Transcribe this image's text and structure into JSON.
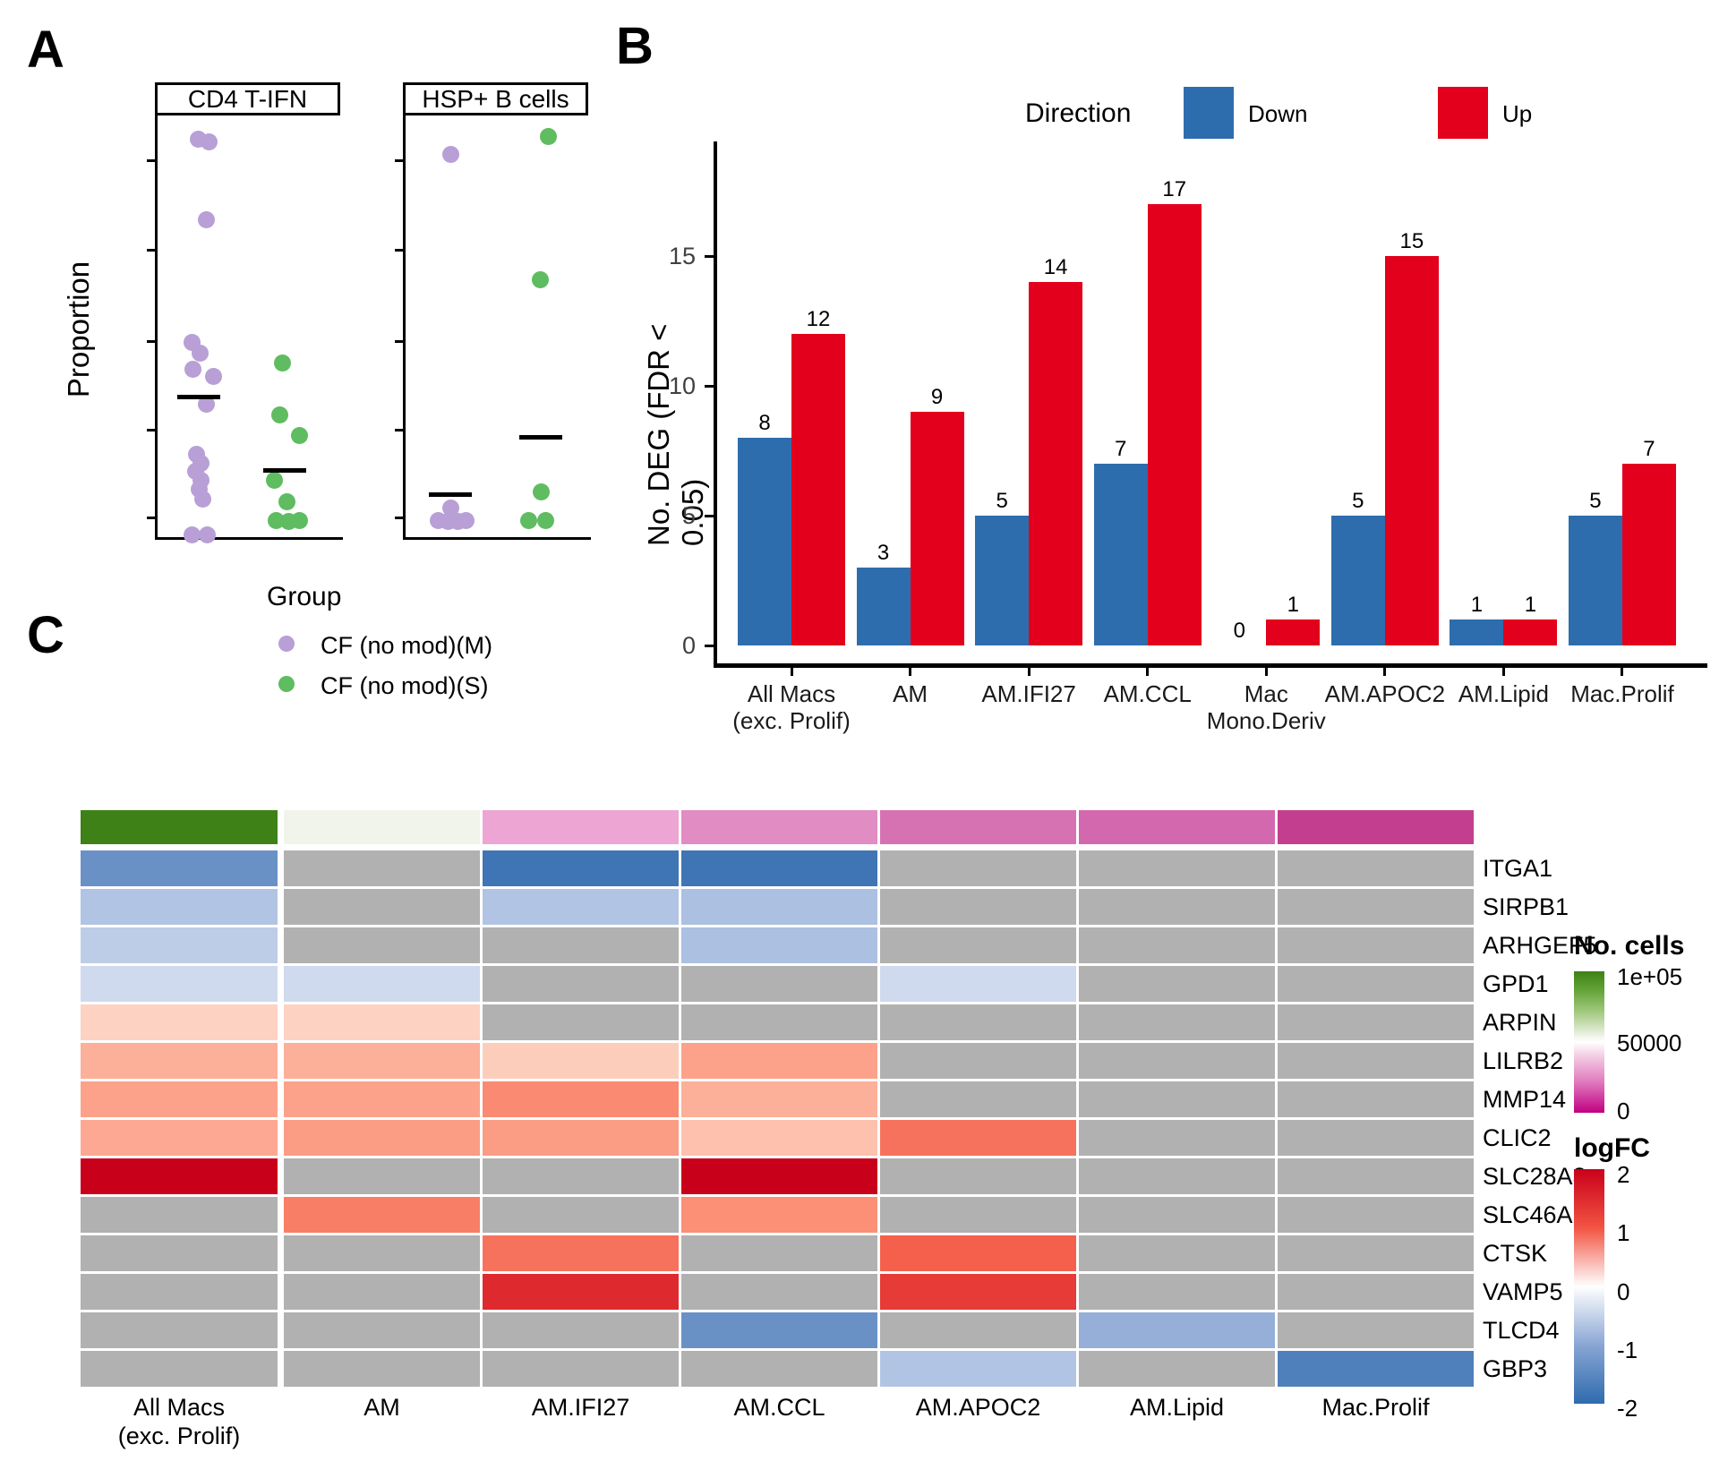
{
  "panels": {
    "a": "A",
    "b": "B",
    "c": "C"
  },
  "chart_data": [
    {
      "type": "scatter",
      "id": "cell-proportion-dotplot",
      "panel": "A",
      "ylabel": "Proportion",
      "y_axis_unlabeled": true,
      "y_units": "relative 0-1 (axis shown without numeric tick labels)",
      "facets": [
        {
          "title": "CD4 T-IFN",
          "series": [
            {
              "name": "CF (no mod)(M)",
              "color": "#B89FD6",
              "mean": 0.333,
              "points": [
                {
                  "dx": -1,
                  "v": 0.943
                },
                {
                  "dx": 11,
                  "v": 0.938
                },
                {
                  "dx": 8,
                  "v": 0.752
                },
                {
                  "dx": -8,
                  "v": 0.461
                },
                {
                  "dx": 1,
                  "v": 0.437
                },
                {
                  "dx": -7,
                  "v": 0.399
                },
                {
                  "dx": 16,
                  "v": 0.382
                },
                {
                  "dx": 8,
                  "v": 0.316
                },
                {
                  "dx": -3,
                  "v": 0.197
                },
                {
                  "dx": 2,
                  "v": 0.176
                },
                {
                  "dx": -4,
                  "v": 0.155
                },
                {
                  "dx": 2,
                  "v": 0.134
                },
                {
                  "dx": 0,
                  "v": 0.113
                },
                {
                  "dx": 4,
                  "v": 0.091
                },
                {
                  "dx": -8,
                  "v": 0.006
                },
                {
                  "dx": 9,
                  "v": 0.006
                }
              ]
            },
            {
              "name": "CF (no mod)(S)",
              "color": "#5FBC60",
              "mean": 0.159,
              "points": [
                {
                  "dx": -3,
                  "v": 0.414
                },
                {
                  "dx": -6,
                  "v": 0.289
                },
                {
                  "dx": 16,
                  "v": 0.24
                },
                {
                  "dx": -12,
                  "v": 0.134
                },
                {
                  "dx": 2,
                  "v": 0.083
                },
                {
                  "dx": -10,
                  "v": 0.04
                },
                {
                  "dx": 4,
                  "v": 0.038
                },
                {
                  "dx": 16,
                  "v": 0.04
                }
              ]
            }
          ]
        },
        {
          "title": "HSP+ B cells",
          "series": [
            {
              "name": "CF (no mod)(M)",
              "color": "#B89FD6",
              "mean": 0.1,
              "points": [
                {
                  "dx": 0,
                  "v": 0.907
                },
                {
                  "dx": 0,
                  "v": 0.068
                },
                {
                  "dx": -14,
                  "v": 0.04
                },
                {
                  "dx": -3,
                  "v": 0.038
                },
                {
                  "dx": 8,
                  "v": 0.038
                },
                {
                  "dx": 17,
                  "v": 0.04
                }
              ]
            },
            {
              "name": "CF (no mod)(S)",
              "color": "#5FBC60",
              "mean": 0.236,
              "points": [
                {
                  "dx": 8,
                  "v": 0.951
                },
                {
                  "dx": -1,
                  "v": 0.611
                },
                {
                  "dx": 0,
                  "v": 0.108
                },
                {
                  "dx": -14,
                  "v": 0.04
                },
                {
                  "dx": 5,
                  "v": 0.04
                }
              ]
            }
          ]
        }
      ],
      "legend": {
        "title": "Group",
        "items": [
          {
            "label": "CF (no mod)(M)",
            "color": "#B89FD6"
          },
          {
            "label": "CF (no mod)(S)",
            "color": "#5FBC60"
          }
        ]
      }
    },
    {
      "type": "bar",
      "id": "deg-counts-barchart",
      "panel": "B",
      "ylabel": "No. DEG (FDR < 0.05)",
      "yticks": [
        0,
        5,
        10,
        15
      ],
      "ylim": [
        0,
        17.5
      ],
      "legend": {
        "title": "Direction",
        "items": [
          {
            "name": "Down",
            "color": "#2E6DAD"
          },
          {
            "name": "Up",
            "color": "#E2001C"
          }
        ]
      },
      "categories": [
        "All Macs (exc. Prolif)",
        "AM",
        "AM.IFI27",
        "AM.CCL",
        "Mac Mono.Deriv",
        "AM.APOC2",
        "AM.Lipid",
        "Mac.Prolif"
      ],
      "categories_lines": [
        [
          "All Macs",
          "(exc. Prolif)"
        ],
        [
          "AM"
        ],
        [
          "AM.IFI27"
        ],
        [
          "AM.CCL"
        ],
        [
          "Mac",
          "Mono.Deriv"
        ],
        [
          "AM.APOC2"
        ],
        [
          "AM.Lipid"
        ],
        [
          "Mac.Prolif"
        ]
      ],
      "series": [
        {
          "name": "Down",
          "color": "#2E6DAD",
          "values": [
            8,
            3,
            5,
            7,
            0,
            5,
            1,
            5
          ]
        },
        {
          "name": "Up",
          "color": "#E2001C",
          "values": [
            12,
            9,
            14,
            17,
            1,
            15,
            1,
            7
          ]
        }
      ]
    },
    {
      "type": "heatmap",
      "id": "logfc-heatmap",
      "panel": "C",
      "columns": [
        "All Macs (exc. Prolif)",
        "AM",
        "AM.IFI27",
        "AM.CCL",
        "AM.APOC2",
        "AM.Lipid",
        "Mac.Prolif"
      ],
      "columns_lines": [
        [
          "All Macs",
          "(exc. Prolif)"
        ],
        [
          "AM"
        ],
        [
          "AM.IFI27"
        ],
        [
          "AM.CCL"
        ],
        [
          "AM.APOC2"
        ],
        [
          "AM.Lipid"
        ],
        [
          "Mac.Prolif"
        ]
      ],
      "genes": [
        "ITGA1",
        "SIRPB1",
        "ARHGEF5",
        "GPD1",
        "ARPIN",
        "LILRB2",
        "MMP14",
        "CLIC2",
        "SLC28A3",
        "SLC46A1",
        "CTSK",
        "VAMP5",
        "TLCD4",
        "GBP3"
      ],
      "logfc": [
        [
          -1.25,
          null,
          -1.7,
          -1.7,
          null,
          null,
          null
        ],
        [
          -0.65,
          null,
          -0.65,
          -0.7,
          null,
          null,
          null
        ],
        [
          -0.55,
          null,
          null,
          -0.7,
          null,
          null,
          null
        ],
        [
          -0.4,
          -0.4,
          null,
          null,
          -0.4,
          null,
          null
        ],
        [
          0.45,
          0.45,
          null,
          null,
          null,
          null,
          null
        ],
        [
          0.75,
          0.75,
          0.5,
          0.85,
          null,
          null,
          null
        ],
        [
          0.85,
          0.85,
          1.05,
          0.75,
          null,
          null,
          null
        ],
        [
          0.8,
          0.9,
          0.9,
          0.6,
          1.25,
          null,
          null
        ],
        [
          2.0,
          null,
          null,
          2.0,
          null,
          null,
          null
        ],
        [
          null,
          1.15,
          null,
          1.0,
          null,
          null,
          null
        ],
        [
          null,
          null,
          1.25,
          null,
          1.4,
          null,
          null
        ],
        [
          null,
          null,
          1.75,
          null,
          1.65,
          null,
          null
        ],
        [
          null,
          null,
          null,
          -1.25,
          null,
          -0.9,
          null
        ],
        [
          null,
          null,
          null,
          null,
          -0.65,
          null,
          -1.45
        ]
      ],
      "na_color": "#B1B1B1",
      "annotation": {
        "label": "No. cells",
        "colors": [
          "#3D8117",
          "#F1F4EA",
          "#EDA6D3",
          "#E18CC2",
          "#D672B2",
          "#D468AE",
          "#C33E8E"
        ],
        "values_estimate": [
          95000,
          50000,
          33000,
          27000,
          20000,
          18000,
          9000
        ]
      },
      "legends": {
        "no_cells": {
          "title": "No. cells",
          "ticks": [
            "1e+05",
            "50000",
            "0"
          ],
          "gradient_top": "#3D8117",
          "gradient_mid": "#FFFFFF",
          "gradient_bottom": "#C10081"
        },
        "logfc": {
          "title": "logFC",
          "ticks": [
            "2",
            "1",
            "0",
            "-1",
            "-2"
          ],
          "range": [
            2,
            -2
          ],
          "pos_anchors": [
            [
              0,
              "#FFFFFF"
            ],
            [
              0.5,
              "#FDCDBC"
            ],
            [
              1,
              "#FB9076"
            ],
            [
              1.5,
              "#F25442"
            ],
            [
              2,
              "#C9001A"
            ]
          ],
          "neg_anchors": [
            [
              0,
              "#FFFFFF"
            ],
            [
              0.5,
              "#C3D1EA"
            ],
            [
              1,
              "#89A6D4"
            ],
            [
              1.5,
              "#4A7CB8"
            ],
            [
              2,
              "#2E6BAE"
            ]
          ]
        }
      }
    }
  ]
}
